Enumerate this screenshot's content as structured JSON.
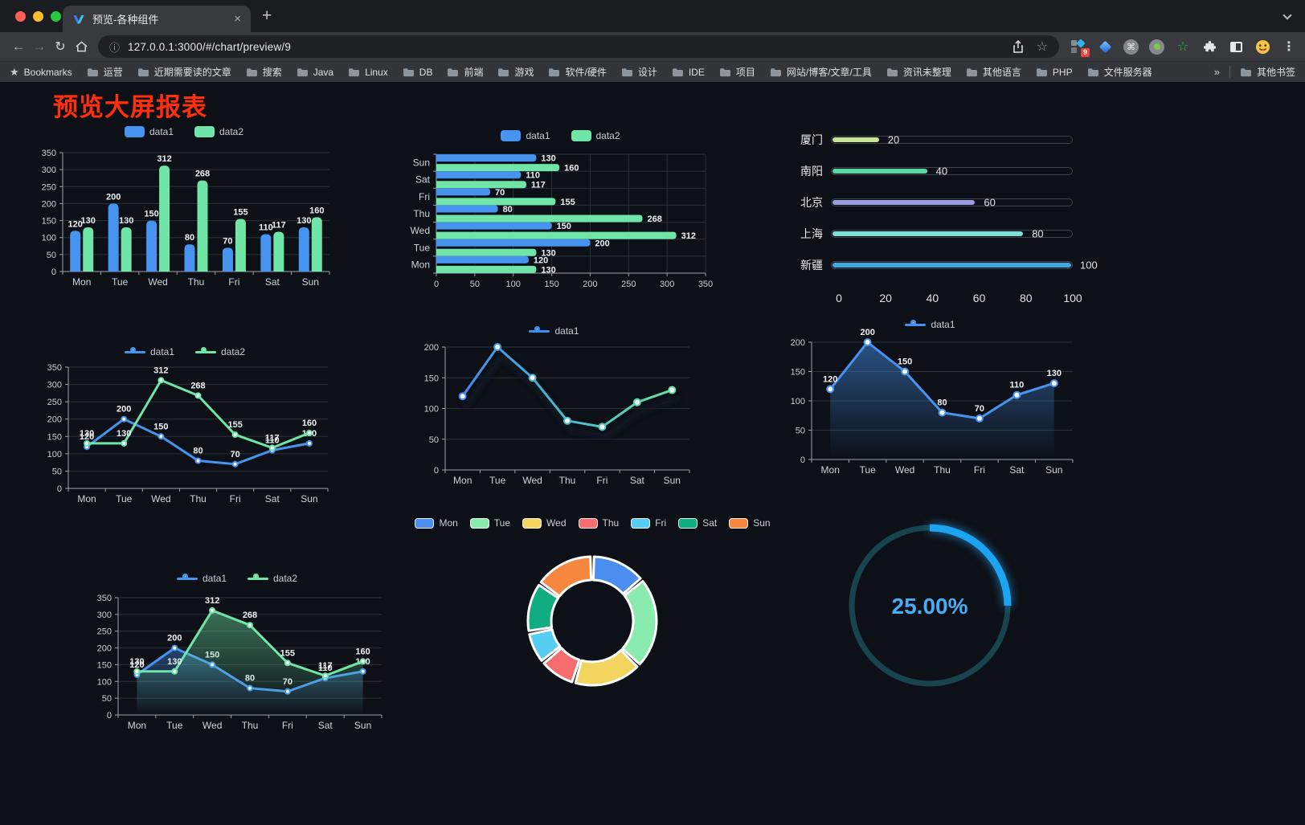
{
  "browser": {
    "tab_title": "预览-各种组件",
    "close_glyph": "×",
    "new_tab_glyph": "+",
    "url": "127.0.0.1:3000/#/chart/preview/9",
    "extension_badge": "9",
    "toolbar_extension_icons": [
      "proxy-extension-icon",
      "gem-extension-icon",
      "command-extension-icon",
      "record-extension-icon",
      "star-extension-icon",
      "puzzle-extension-icon",
      "side-panel-icon",
      "profile-avatar-icon",
      "menu-icon"
    ],
    "bookmarks_bar": {
      "bookmarks_label": "Bookmarks",
      "folders": [
        "运营",
        "近期需要读的文章",
        "搜索",
        "Java",
        "Linux",
        "DB",
        "前端",
        "游戏",
        "软件/硬件",
        "设计",
        "IDE",
        "项目",
        "网站/博客/文章/工具",
        "资讯未整理",
        "其他语言",
        "PHP",
        "文件服务器"
      ],
      "overflow_glyph": "»",
      "other_bookmarks": "其他书签"
    }
  },
  "page": {
    "title": "预览大屏报表",
    "title_color": "#ff2f0d",
    "background": "#0d1016"
  },
  "chart_data": [
    {
      "id": "chart-bar",
      "type": "bar",
      "categories": [
        "Mon",
        "Tue",
        "Wed",
        "Thu",
        "Fri",
        "Sat",
        "Sun"
      ],
      "series": [
        {
          "name": "data1",
          "color": "#4693F0",
          "values": [
            120,
            200,
            150,
            80,
            70,
            110,
            130
          ]
        },
        {
          "name": "data2",
          "color": "#6FE6A7",
          "values": [
            130,
            130,
            312,
            268,
            155,
            117,
            160
          ]
        }
      ],
      "ylim": [
        0,
        350
      ],
      "yticks": [
        0,
        50,
        100,
        150,
        200,
        250,
        300,
        350
      ],
      "value_labels": true,
      "legend_position": "top",
      "grid": true
    },
    {
      "id": "chart-hbar",
      "type": "hbar",
      "categories": [
        "Mon",
        "Tue",
        "Wed",
        "Thu",
        "Fri",
        "Sat",
        "Sun"
      ],
      "series": [
        {
          "name": "data1",
          "color": "#4693F0",
          "values": [
            120,
            200,
            150,
            80,
            70,
            110,
            130
          ]
        },
        {
          "name": "data2",
          "color": "#6FE6A7",
          "values": [
            130,
            130,
            312,
            268,
            155,
            117,
            160
          ]
        }
      ],
      "xlim": [
        0,
        350
      ],
      "xticks": [
        0,
        50,
        100,
        150,
        200,
        250,
        300,
        350
      ],
      "value_labels": true,
      "legend_position": "top",
      "grid": true
    },
    {
      "id": "chart-progress",
      "type": "progress",
      "max": 100,
      "ticks": [
        0,
        20,
        40,
        60,
        80,
        100
      ],
      "items": [
        {
          "label": "厦门",
          "value": 20,
          "color": "#C6E58C"
        },
        {
          "label": "南阳",
          "value": 40,
          "color": "#5CD6A3"
        },
        {
          "label": "北京",
          "value": 60,
          "color": "#999EE3"
        },
        {
          "label": "上海",
          "value": 80,
          "color": "#7EDFD9"
        },
        {
          "label": "新疆",
          "value": 100,
          "color": "#3DA9E3"
        }
      ]
    },
    {
      "id": "chart-line-basic",
      "type": "line",
      "categories": [
        "Mon",
        "Tue",
        "Wed",
        "Thu",
        "Fri",
        "Sat",
        "Sun"
      ],
      "series": [
        {
          "name": "data1",
          "color": "#4693F0",
          "values": [
            120,
            200,
            150,
            80,
            70,
            110,
            130
          ]
        },
        {
          "name": "data2",
          "color": "#6FE6A7",
          "values": [
            130,
            130,
            312,
            268,
            155,
            117,
            160
          ]
        }
      ],
      "ylim": [
        0,
        350
      ],
      "yticks": [
        0,
        50,
        100,
        150,
        200,
        250,
        300,
        350
      ],
      "value_labels": true,
      "legend_position": "top",
      "grid": true
    },
    {
      "id": "chart-line-gradient",
      "type": "line",
      "categories": [
        "Mon",
        "Tue",
        "Wed",
        "Thu",
        "Fri",
        "Sat",
        "Sun"
      ],
      "series": [
        {
          "name": "data1",
          "gradient": [
            "#3F8CF2",
            "#5FE6A4"
          ],
          "values": [
            120,
            200,
            150,
            80,
            70,
            110,
            130
          ]
        }
      ],
      "ylim": [
        0,
        200
      ],
      "yticks": [
        0,
        50,
        100,
        150,
        200
      ],
      "value_labels": false,
      "shadow": true,
      "legend_position": "top",
      "grid": true
    },
    {
      "id": "chart-area-single",
      "type": "line",
      "categories": [
        "Mon",
        "Tue",
        "Wed",
        "Thu",
        "Fri",
        "Sat",
        "Sun"
      ],
      "series": [
        {
          "name": "data1",
          "color": "#4693F0",
          "values": [
            120,
            200,
            150,
            80,
            70,
            110,
            130
          ],
          "area": 0.5
        }
      ],
      "ylim": [
        0,
        200
      ],
      "yticks": [
        0,
        50,
        100,
        150,
        200
      ],
      "value_labels": true,
      "legend_position": "top",
      "grid": true
    },
    {
      "id": "chart-area-double",
      "type": "line",
      "categories": [
        "Mon",
        "Tue",
        "Wed",
        "Thu",
        "Fri",
        "Sat",
        "Sun"
      ],
      "series": [
        {
          "name": "data1",
          "color": "#4693F0",
          "values": [
            120,
            200,
            150,
            80,
            70,
            110,
            130
          ],
          "area": 0.4
        },
        {
          "name": "data2",
          "color": "#6FE6A7",
          "values": [
            130,
            130,
            312,
            268,
            155,
            117,
            160
          ],
          "area": 0.45
        }
      ],
      "ylim": [
        0,
        350
      ],
      "yticks": [
        0,
        50,
        100,
        150,
        200,
        250,
        300,
        350
      ],
      "value_labels": true,
      "legend_position": "top",
      "grid": true
    },
    {
      "id": "chart-donut",
      "type": "donut",
      "legend_position": "top",
      "items": [
        {
          "label": "Mon",
          "value": 120,
          "color": "#4C8DF0"
        },
        {
          "label": "Tue",
          "value": 200,
          "color": "#8AEBAE"
        },
        {
          "label": "Wed",
          "value": 150,
          "color": "#F3D45F"
        },
        {
          "label": "Thu",
          "value": 80,
          "color": "#F56D6D"
        },
        {
          "label": "Fri",
          "value": 70,
          "color": "#56CEF2"
        },
        {
          "label": "Sat",
          "value": 110,
          "color": "#0FAD7F"
        },
        {
          "label": "Sun",
          "value": 130,
          "color": "#F5873F"
        }
      ]
    },
    {
      "id": "chart-gauge",
      "type": "gauge",
      "value_text": "25.00%",
      "percent": 25,
      "color": "#1BA4F2",
      "track_color": "#184450",
      "text_color": "#48ADF2"
    }
  ]
}
